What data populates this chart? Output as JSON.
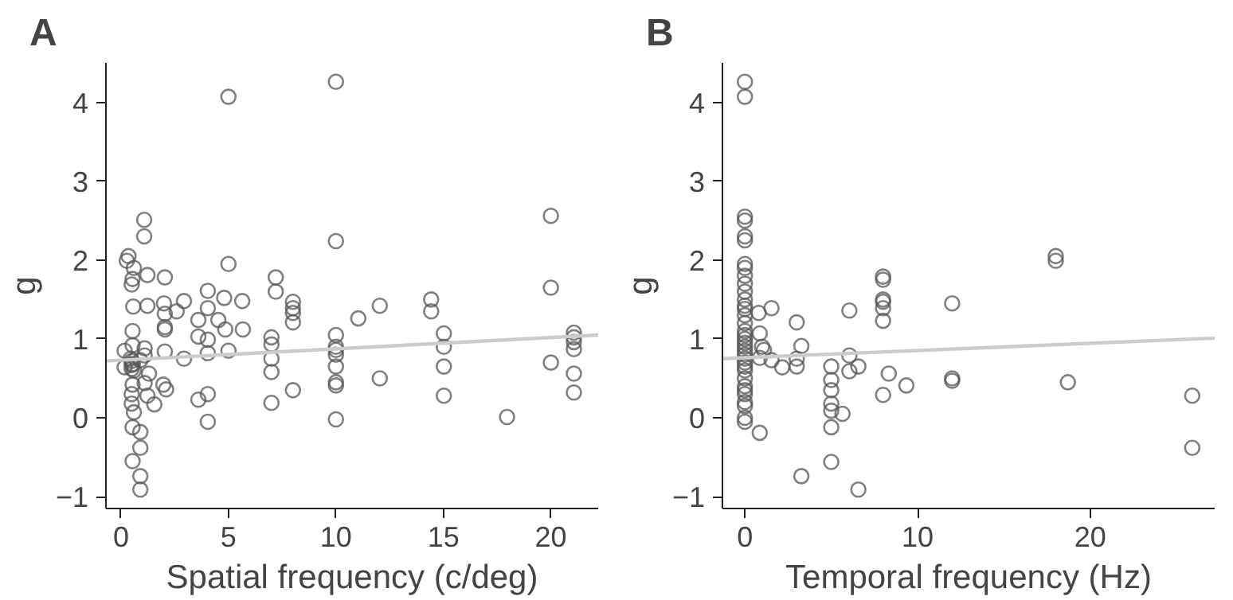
{
  "chart_data": [
    {
      "type": "scatter",
      "title": "A",
      "xlabel": "Spatial frequency (c/deg)",
      "ylabel": "g",
      "xlim": [
        -0.7,
        22.2
      ],
      "ylim": [
        -1.15,
        4.5
      ],
      "xticks": [
        0,
        5,
        10,
        15,
        20
      ],
      "yticks": [
        -1,
        0,
        1,
        2,
        3,
        4
      ],
      "grid": false,
      "series": [
        {
          "marker": "circle",
          "color": "#555555",
          "x": [
            5,
            1.08,
            1.08,
            0.35,
            0.27,
            0.6,
            0.54,
            0.5,
            1.23,
            2.04,
            5,
            7.2,
            7.2,
            4.04,
            4.8,
            5.64,
            2.93,
            2.0,
            1.23,
            0.57,
            8,
            8,
            8,
            8,
            2.59,
            2.04,
            4.04,
            3.6,
            4.53,
            2.04,
            2.04,
            4.85,
            5.67,
            3.6,
            4.04,
            7,
            7,
            7,
            7,
            7,
            8,
            4.04,
            5,
            2.93,
            2.04,
            0.54,
            0.54,
            0.17,
            0.17,
            1.1,
            1.1,
            0.9,
            1.3,
            1.1,
            1.23,
            1.55,
            1.97,
            2.1,
            0.5,
            0.6,
            0.54,
            0.5,
            0.5,
            0.6,
            0.54,
            0.9,
            0.9,
            0.54,
            0.9,
            0.9,
            3.6,
            4.04,
            4.04,
            0.5,
            0.55,
            0.45,
            0.5,
            10,
            10,
            20,
            20,
            20,
            10,
            10,
            10,
            10,
            10,
            10,
            10,
            10,
            11.04,
            12.04,
            12.04,
            14.43,
            14.43,
            15.02,
            15.02,
            15.02,
            15.02,
            17.96,
            21.07,
            21.07,
            21.07,
            21.07,
            21.07,
            21.07
          ],
          "values": [
            4.07,
            2.51,
            2.3,
            2.05,
            1.99,
            1.9,
            1.76,
            1.69,
            1.81,
            1.78,
            1.95,
            1.78,
            1.6,
            1.61,
            1.52,
            1.48,
            1.48,
            1.45,
            1.42,
            1.41,
            1.47,
            1.39,
            1.33,
            1.21,
            1.35,
            1.32,
            1.39,
            1.24,
            1.24,
            1.15,
            1.12,
            1.12,
            1.12,
            1.03,
            0.99,
            1.02,
            0.93,
            0.75,
            0.58,
            0.19,
            0.35,
            0.82,
            0.85,
            0.75,
            0.84,
            1.1,
            0.92,
            0.85,
            0.64,
            0.88,
            0.79,
            0.73,
            0.56,
            0.44,
            0.28,
            0.17,
            0.42,
            0.36,
            0.67,
            0.6,
            0.42,
            0.3,
            0.18,
            0.07,
            -0.12,
            -0.18,
            -0.38,
            -0.55,
            -0.74,
            -0.91,
            0.23,
            0.3,
            -0.05,
            0.72,
            0.68,
            0.75,
            0.62,
            4.26,
            2.24,
            2.56,
            1.65,
            0.7,
            1.05,
            0.9,
            0.86,
            0.8,
            0.65,
            0.45,
            0.41,
            -0.02,
            1.26,
            1.42,
            0.5,
            1.5,
            1.35,
            1.07,
            0.9,
            0.65,
            0.28,
            0.01,
            1.08,
            1.02,
            0.96,
            0.87,
            0.56,
            0.32
          ]
        },
        {
          "type": "line",
          "color": "#cccccc",
          "x": [
            -0.7,
            22.2
          ],
          "values": [
            0.72,
            1.05
          ]
        }
      ]
    },
    {
      "type": "scatter",
      "title": "B",
      "xlabel": "Temporal frequency (Hz)",
      "ylabel": "g",
      "xlim": [
        -1.3,
        27.2
      ],
      "ylim": [
        -1.15,
        4.5
      ],
      "xticks": [
        0,
        10,
        20
      ],
      "yticks": [
        -1,
        0,
        1,
        2,
        3,
        4
      ],
      "grid": false,
      "series": [
        {
          "marker": "circle",
          "color": "#555555",
          "x": [
            0,
            0,
            0,
            0,
            0,
            0,
            0,
            0,
            0,
            0,
            0,
            0,
            0,
            0,
            0,
            0,
            0,
            0,
            0,
            0,
            0,
            0,
            0,
            0,
            0,
            0,
            0,
            0,
            0,
            0,
            0,
            0,
            0,
            0,
            0,
            0.8,
            1.54,
            0.86,
            0.99,
            1.1,
            0.86,
            1.54,
            2.16,
            3.0,
            3.27,
            3.0,
            3.0,
            0.86,
            3.27,
            5,
            5,
            5,
            5,
            5,
            5.65,
            5,
            5,
            6.05,
            6.05,
            6.05,
            6.57,
            6.57,
            8,
            8,
            8,
            8,
            8,
            8,
            8,
            8.33,
            9.35,
            12,
            12,
            12,
            18,
            18,
            18.7,
            25.9,
            25.9
          ],
          "values": [
            4.26,
            4.07,
            2.55,
            2.5,
            2.3,
            2.25,
            1.95,
            1.9,
            1.8,
            1.7,
            1.6,
            1.5,
            1.42,
            1.38,
            1.3,
            1.2,
            1.1,
            1.05,
            1.0,
            0.95,
            0.9,
            0.85,
            0.8,
            0.75,
            0.7,
            0.65,
            0.6,
            0.5,
            0.4,
            0.35,
            0.3,
            0.2,
            0.15,
            0.0,
            -0.05,
            1.33,
            1.39,
            1.07,
            0.9,
            0.86,
            0.76,
            0.73,
            0.64,
            1.21,
            0.91,
            0.75,
            0.65,
            -0.19,
            -0.74,
            0.65,
            0.48,
            0.35,
            0.18,
            0.09,
            0.05,
            -0.12,
            -0.56,
            1.36,
            0.79,
            0.59,
            0.65,
            -0.91,
            1.79,
            1.75,
            1.5,
            1.47,
            1.39,
            1.23,
            0.29,
            0.56,
            0.41,
            1.45,
            0.5,
            0.47,
            2.05,
            1.99,
            0.45,
            0.28,
            -0.38
          ]
        },
        {
          "type": "line",
          "color": "#cccccc",
          "x": [
            -1.3,
            27.2
          ],
          "values": [
            0.75,
            1.01
          ]
        }
      ]
    }
  ]
}
